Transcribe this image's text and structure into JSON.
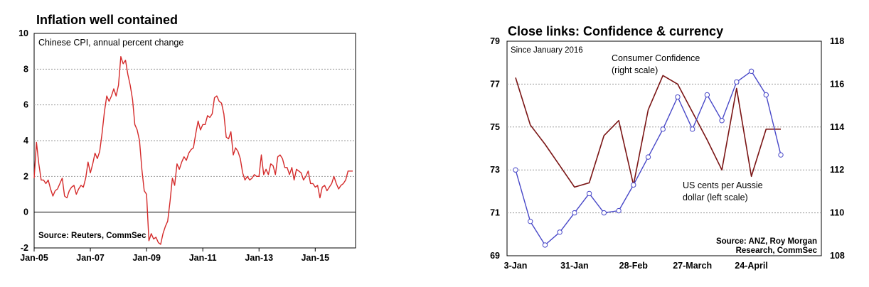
{
  "chart_data": [
    {
      "type": "line",
      "title": "Inflation well contained",
      "subtitle": "Chinese CPI, annual percent change",
      "source": "Source: Reuters, CommSec",
      "xlabel": "",
      "ylabel": "",
      "ylim": [
        -2,
        10
      ],
      "y_ticks": [
        "10",
        "8",
        "6",
        "4",
        "2",
        "0",
        "-2"
      ],
      "x_ticks": [
        "Jan-05",
        "Jan-07",
        "Jan-09",
        "Jan-11",
        "Jan-13",
        "Jan-15"
      ],
      "grid": true,
      "series_color": "#d42a2a",
      "series": [
        {
          "x_start": "2005-01",
          "frequency": "monthly",
          "values": [
            1.9,
            3.9,
            2.7,
            1.8,
            1.8,
            1.6,
            1.8,
            1.3,
            0.9,
            1.2,
            1.3,
            1.6,
            1.9,
            0.9,
            0.8,
            1.2,
            1.4,
            1.5,
            1.0,
            1.3,
            1.5,
            1.4,
            1.9,
            2.8,
            2.2,
            2.7,
            3.3,
            3.0,
            3.4,
            4.4,
            5.6,
            6.5,
            6.2,
            6.5,
            6.9,
            6.5,
            7.1,
            8.7,
            8.3,
            8.5,
            7.7,
            7.1,
            6.3,
            4.9,
            4.6,
            4.0,
            2.4,
            1.2,
            1.0,
            -1.6,
            -1.2,
            -1.5,
            -1.4,
            -1.7,
            -1.8,
            -1.2,
            -0.8,
            -0.5,
            0.6,
            1.9,
            1.5,
            2.7,
            2.4,
            2.8,
            3.1,
            2.9,
            3.3,
            3.5,
            3.6,
            4.4,
            5.1,
            4.6,
            4.9,
            4.9,
            5.4,
            5.3,
            5.5,
            6.4,
            6.5,
            6.2,
            6.1,
            5.5,
            4.2,
            4.1,
            4.5,
            3.2,
            3.6,
            3.4,
            3.0,
            2.2,
            1.8,
            2.0,
            1.8,
            1.9,
            2.1,
            2.0,
            2.0,
            3.2,
            2.1,
            2.4,
            2.1,
            2.7,
            2.6,
            2.1,
            3.1,
            3.2,
            3.0,
            2.5,
            2.5,
            2.1,
            2.5,
            1.8,
            2.4,
            2.3,
            2.2,
            1.8,
            2.0,
            2.3,
            1.6,
            1.6,
            1.4,
            1.5,
            0.8,
            1.4,
            1.5,
            1.2,
            1.4,
            1.6,
            2.0,
            1.6,
            1.3,
            1.5,
            1.6,
            1.8,
            2.3,
            2.3,
            2.3
          ]
        }
      ]
    },
    {
      "type": "line",
      "title": "Close links: Confidence & currency",
      "subtitle": "Since January 2016",
      "source_lines": [
        "Source: ANZ, Roy Morgan",
        "Research, CommSec"
      ],
      "xlabel": "",
      "ylabel": "",
      "ylim_left": [
        69,
        79
      ],
      "ylim_right": [
        108,
        118
      ],
      "y_ticks_left": [
        "79",
        "77",
        "75",
        "73",
        "71",
        "69"
      ],
      "y_ticks_right": [
        "118",
        "116",
        "114",
        "112",
        "110",
        "108"
      ],
      "x_ticks": [
        "3-Jan",
        "31-Jan",
        "28-Feb",
        "27-March",
        "24-April"
      ],
      "grid": true,
      "series": [
        {
          "name_lines": [
            "Consumer Confidence",
            "(right scale)"
          ],
          "axis": "right",
          "color": "#7a1414",
          "values": [
            116.3,
            114.1,
            113.2,
            112.2,
            111.2,
            111.4,
            113.6,
            114.3,
            111.3,
            114.8,
            116.4,
            116.0,
            114.7,
            113.4,
            112.0,
            115.8,
            111.7,
            113.9,
            113.9
          ]
        },
        {
          "name_lines": [
            "US cents per Aussie",
            "dollar (left scale)"
          ],
          "axis": "left",
          "color": "#4848c8",
          "values": [
            73.0,
            70.6,
            69.5,
            70.1,
            71.0,
            71.9,
            71.0,
            71.1,
            72.3,
            73.6,
            74.9,
            76.4,
            74.9,
            76.5,
            75.3,
            77.1,
            77.6,
            76.5,
            73.7
          ]
        }
      ]
    }
  ]
}
